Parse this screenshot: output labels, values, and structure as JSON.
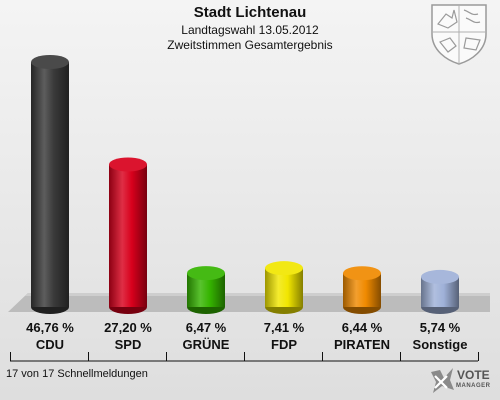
{
  "header": {
    "title": "Stadt Lichtenau",
    "subtitle1": "Landtagswahl 13.05.2012",
    "subtitle2": "Zweitstimmen Gesamtergebnis"
  },
  "chart_data": {
    "type": "bar",
    "categories": [
      "CDU",
      "SPD",
      "GRÜNE",
      "FDP",
      "PIRATEN",
      "Sonstige"
    ],
    "values": [
      46.76,
      27.2,
      6.47,
      7.41,
      6.44,
      5.74
    ],
    "value_labels": [
      "46,76 %",
      "27,20 %",
      "6,47 %",
      "7,41 %",
      "6,44 %",
      "5,74 %"
    ],
    "colors": [
      "#3a3a3a",
      "#d8001c",
      "#35b400",
      "#f1e600",
      "#f08a00",
      "#9fb1d8"
    ],
    "ylim": [
      0,
      50
    ],
    "grid": false,
    "legend": "none"
  },
  "footnote": "17 von 17 Schnellmeldungen",
  "logo": {
    "name": "VOTE",
    "sub": "MANAGER"
  }
}
